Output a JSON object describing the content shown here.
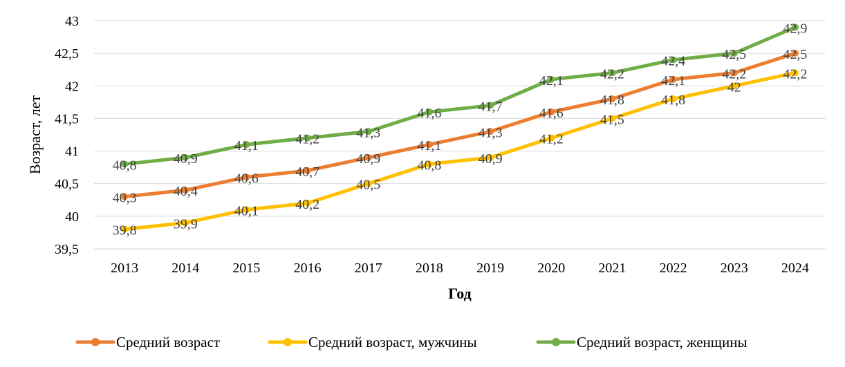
{
  "chart_data": {
    "type": "line",
    "title": "",
    "xlabel": "Год",
    "ylabel": "Возраст, лет",
    "categories": [
      "2013",
      "2014",
      "2015",
      "2016",
      "2017",
      "2018",
      "2019",
      "2020",
      "2021",
      "2022",
      "2023",
      "2024"
    ],
    "ylim": [
      39.5,
      43
    ],
    "yticks": [
      39.5,
      40,
      40.5,
      41,
      41.5,
      42,
      42.5,
      43
    ],
    "ytick_labels": [
      "39,5",
      "40",
      "40,5",
      "41",
      "41,5",
      "42",
      "42,5",
      "43"
    ],
    "grid": true,
    "legend_position": "bottom",
    "series": [
      {
        "name": "Средний возраст",
        "color": "#ED7D31",
        "values": [
          40.3,
          40.4,
          40.6,
          40.7,
          40.9,
          41.1,
          41.3,
          41.6,
          41.8,
          42.1,
          42.2,
          42.5
        ],
        "labels": [
          "40,3",
          "40,4",
          "40,6",
          "40,7",
          "40,9",
          "41,1",
          "41,3",
          "41,6",
          "41,8",
          "42,1",
          "42,2",
          "42,5"
        ]
      },
      {
        "name": "Средний возраст, мужчины",
        "color": "#FFC000",
        "values": [
          39.8,
          39.9,
          40.1,
          40.2,
          40.5,
          40.8,
          40.9,
          41.2,
          41.5,
          41.8,
          42.0,
          42.2
        ],
        "labels": [
          "39,8",
          "39,9",
          "40,1",
          "40,2",
          "40,5",
          "40,8",
          "40,9",
          "41,2",
          "41,5",
          "41,8",
          "42",
          "42,2"
        ]
      },
      {
        "name": "Средний возраст, женщины",
        "color": "#70AD47",
        "values": [
          40.8,
          40.9,
          41.1,
          41.2,
          41.3,
          41.6,
          41.7,
          42.1,
          42.2,
          42.4,
          42.5,
          42.9
        ],
        "labels": [
          "40,8",
          "40,9",
          "41,1",
          "41,2",
          "41,3",
          "41,6",
          "41,7",
          "42,1",
          "42,2",
          "42,4",
          "42,5",
          "42,9"
        ]
      }
    ]
  }
}
